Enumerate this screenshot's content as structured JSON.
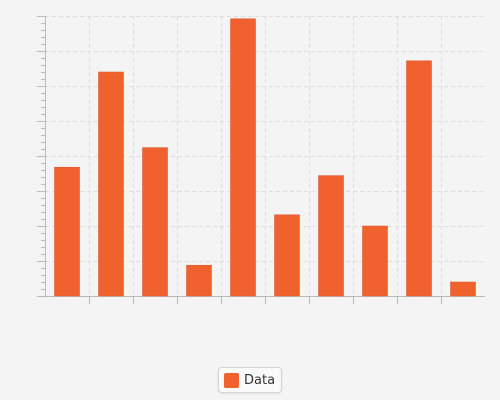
{
  "chart_data": {
    "type": "bar",
    "categories": [
      "",
      "",
      "",
      "",
      "",
      "",
      "",
      "",
      "",
      ""
    ],
    "series": [
      {
        "name": "Data",
        "values": [
          46,
          80,
          53,
          11,
          99,
          29,
          43,
          25,
          84,
          5
        ]
      }
    ],
    "title": "",
    "xlabel": "",
    "ylabel": "",
    "ylim": [
      0,
      100
    ],
    "grid": true,
    "legend_position": "bottom-center",
    "colors": {
      "bar": "#f0612e",
      "bar_edge": "#d9532a",
      "grid": "#dddddd",
      "axis": "#bbbbbb"
    }
  },
  "legend": {
    "label": "Data"
  }
}
